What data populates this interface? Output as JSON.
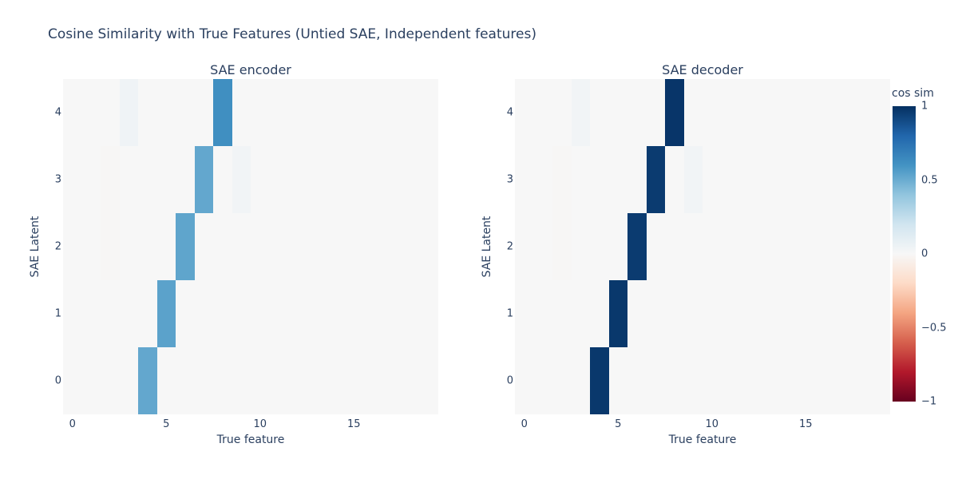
{
  "page": {
    "title": "Cosine Similarity with True Features (Untied SAE, Independent features)"
  },
  "colors": {
    "text": "#2a3f5f",
    "paper_background": "#ffffff",
    "zero_cell": "#f7f7f7",
    "encoder_peak_cell": "#4190c1",
    "decoder_peak_cell": "#0a3264"
  },
  "chart_data": [
    {
      "type": "heatmap",
      "title": "SAE encoder",
      "xlabel": "True feature",
      "ylabel": "SAE Latent",
      "rows": 5,
      "cols": 20,
      "x_range": [
        -0.5,
        19.5
      ],
      "y_range": [
        -0.5,
        4.5
      ],
      "xtick_values": [
        0,
        5,
        10,
        15
      ],
      "xtick_labels": [
        "0",
        "5",
        "10",
        "15"
      ],
      "ytick_values": [
        0,
        1,
        2,
        3,
        4
      ],
      "ytick_labels": [
        "0",
        "1",
        "2",
        "3",
        "4"
      ],
      "matrix_row_order": "index 0 = SAE latent 0 (bottom row)",
      "matrix": [
        [
          0,
          0,
          0,
          0,
          0.52,
          0,
          0,
          0,
          0,
          0,
          0,
          0,
          0,
          0,
          0,
          0,
          0,
          0,
          0,
          0
        ],
        [
          0,
          0,
          0,
          0,
          0,
          0.54,
          0,
          0,
          0,
          0,
          0,
          0,
          0,
          0,
          0,
          0,
          0,
          0,
          0,
          0
        ],
        [
          0,
          0,
          -0.01,
          0,
          0,
          0,
          0.53,
          0,
          0,
          0,
          0,
          0,
          0,
          0,
          0,
          0,
          0,
          0,
          0,
          0
        ],
        [
          0,
          0,
          -0.01,
          0,
          0,
          0,
          0,
          0.52,
          0,
          0.03,
          0,
          0,
          0,
          0,
          0,
          0,
          0,
          0,
          0,
          0
        ],
        [
          0,
          0,
          0,
          0.04,
          0,
          0,
          0,
          0,
          0.62,
          0,
          0,
          0,
          0,
          0,
          0,
          0,
          0,
          0,
          0,
          0
        ]
      ]
    },
    {
      "type": "heatmap",
      "title": "SAE decoder",
      "xlabel": "True feature",
      "ylabel": "SAE Latent",
      "rows": 5,
      "cols": 20,
      "x_range": [
        -0.5,
        19.5
      ],
      "y_range": [
        -0.5,
        4.5
      ],
      "xtick_values": [
        0,
        5,
        10,
        15
      ],
      "xtick_labels": [
        "0",
        "5",
        "10",
        "15"
      ],
      "ytick_values": [
        0,
        1,
        2,
        3,
        4
      ],
      "ytick_labels": [
        "0",
        "1",
        "2",
        "3",
        "4"
      ],
      "matrix_row_order": "index 0 = SAE latent 0 (bottom row)",
      "matrix": [
        [
          0,
          0,
          0,
          0,
          0.97,
          0,
          0,
          0,
          0,
          0,
          0,
          0,
          0,
          0,
          0,
          0,
          0,
          0,
          0,
          0
        ],
        [
          0,
          0,
          0,
          0,
          0,
          0.97,
          0,
          0,
          0,
          0,
          0,
          0,
          0,
          0,
          0,
          0,
          0,
          0,
          0,
          0
        ],
        [
          0,
          0,
          -0.01,
          0,
          0,
          0,
          0.96,
          0,
          0,
          0,
          0,
          0,
          0,
          0,
          0,
          0,
          0,
          0,
          0,
          0
        ],
        [
          0,
          0,
          -0.01,
          0,
          0,
          0,
          0,
          0.96,
          0,
          0.03,
          0,
          0,
          0,
          0,
          0,
          0,
          0,
          0,
          0,
          0
        ],
        [
          0,
          0,
          0,
          0.03,
          0,
          0,
          0,
          0,
          0.98,
          0,
          0,
          0,
          0,
          0,
          0,
          0,
          0,
          0,
          0,
          0
        ]
      ]
    }
  ],
  "colorbar": {
    "title": "cos sim",
    "vmin": -1,
    "vmax": 1,
    "tick_values": [
      1,
      0.5,
      0,
      -0.5,
      -1
    ],
    "tick_labels": [
      "1",
      "0.5",
      "0",
      "−0.5",
      "−1"
    ]
  },
  "colorscale": {
    "name": "RdBu",
    "stops": [
      [
        0.0,
        103,
        0,
        31
      ],
      [
        0.1,
        178,
        24,
        43
      ],
      [
        0.2,
        214,
        96,
        77
      ],
      [
        0.3,
        244,
        165,
        130
      ],
      [
        0.4,
        253,
        219,
        199
      ],
      [
        0.5,
        247,
        247,
        247
      ],
      [
        0.6,
        209,
        229,
        240
      ],
      [
        0.7,
        146,
        197,
        222
      ],
      [
        0.8,
        67,
        147,
        195
      ],
      [
        0.9,
        33,
        102,
        172
      ],
      [
        1.0,
        5,
        48,
        97
      ]
    ]
  }
}
